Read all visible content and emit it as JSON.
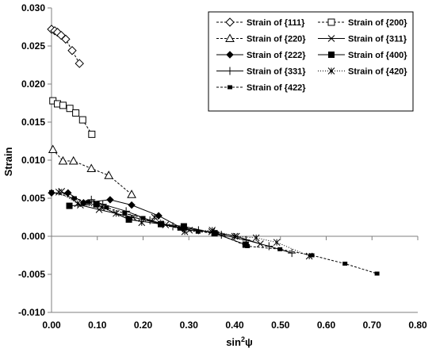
{
  "chart_data": {
    "type": "scatter",
    "xlabel": "sin²ψ",
    "xlabel_base": "sin",
    "xlabel_sup": "2",
    "xlabel_tail": "ψ",
    "ylabel": "Strain",
    "xlim": [
      0.0,
      0.8
    ],
    "ylim": [
      -0.01,
      0.03
    ],
    "x_ticks": [
      "0.00",
      "0.10",
      "0.20",
      "0.30",
      "0.40",
      "0.50",
      "0.60",
      "0.70",
      "0.80"
    ],
    "y_ticks": [
      "-0.010",
      "-0.005",
      "0.000",
      "0.005",
      "0.010",
      "0.015",
      "0.020",
      "0.025",
      "0.030"
    ],
    "grid": false,
    "legend_position": "top-right",
    "series": [
      {
        "name": "Strain of {111}",
        "marker": "diamond-open",
        "line": "dashed",
        "x": [
          0.0,
          0.007,
          0.013,
          0.021,
          0.031,
          0.045,
          0.061
        ],
        "y": [
          0.0272,
          0.027,
          0.0268,
          0.0264,
          0.0259,
          0.0244,
          0.0227
        ]
      },
      {
        "name": "Strain of {200}",
        "marker": "square-open",
        "line": "dashed",
        "x": [
          0.003,
          0.013,
          0.025,
          0.04,
          0.053,
          0.068,
          0.088
        ],
        "y": [
          0.0178,
          0.0174,
          0.0172,
          0.0168,
          0.0162,
          0.0153,
          0.0134
        ]
      },
      {
        "name": "Strain of {220}",
        "marker": "triangle-open",
        "line": "dashed",
        "x": [
          0.003,
          0.025,
          0.048,
          0.087,
          0.125,
          0.175
        ],
        "y": [
          0.0114,
          0.0099,
          0.0099,
          0.0089,
          0.008,
          0.0055
        ]
      },
      {
        "name": "Strain of {311}",
        "marker": "x",
        "line": "solid",
        "x": [
          0.022,
          0.063,
          0.104,
          0.178,
          0.249,
          0.301,
          0.35,
          0.404,
          0.456
        ],
        "y": [
          0.0059,
          0.0041,
          0.0035,
          0.0025,
          0.0015,
          0.0008,
          0.0006,
          0.0,
          -0.001
        ]
      },
      {
        "name": "Strain of {222}",
        "marker": "diamond-filled",
        "line": "solid",
        "x": [
          0.0,
          0.036,
          0.07,
          0.128,
          0.175,
          0.234,
          0.287
        ],
        "y": [
          0.0057,
          0.0057,
          0.0044,
          0.0048,
          0.0041,
          0.0027,
          0.001
        ]
      },
      {
        "name": "Strain of {400}",
        "marker": "square-filled",
        "line": "solid",
        "x": [
          0.039,
          0.098,
          0.169,
          0.239,
          0.289,
          0.356,
          0.424
        ],
        "y": [
          0.004,
          0.0042,
          0.0022,
          0.0016,
          0.0013,
          0.0004,
          -0.0011
        ]
      },
      {
        "name": "Strain of {331}",
        "marker": "plus",
        "line": "solid",
        "x": [
          0.087,
          0.112,
          0.163,
          0.215,
          0.265,
          0.321,
          0.371,
          0.425,
          0.475,
          0.525
        ],
        "y": [
          0.0048,
          0.0042,
          0.0033,
          0.0021,
          0.0013,
          0.0008,
          0.0002,
          -0.0005,
          -0.0013,
          -0.0022
        ]
      },
      {
        "name": "Strain of {420}",
        "marker": "asterisk",
        "line": "dotted",
        "x": [
          0.016,
          0.057,
          0.109,
          0.141,
          0.197,
          0.225,
          0.291,
          0.351,
          0.4,
          0.447,
          0.492,
          0.563
        ],
        "y": [
          0.0058,
          0.0043,
          0.0038,
          0.003,
          0.0018,
          0.0025,
          0.0006,
          0.0008,
          0.0,
          -0.0002,
          -0.0008,
          -0.0026
        ]
      },
      {
        "name": "Strain of {422}",
        "marker": "square-filled-small",
        "line": "dashed",
        "x": [
          0.0,
          0.05,
          0.08,
          0.12,
          0.16,
          0.2,
          0.238,
          0.28,
          0.32,
          0.36,
          0.428,
          0.499,
          0.569,
          0.641,
          0.711
        ],
        "y": [
          0.0058,
          0.005,
          0.0045,
          0.0038,
          0.003,
          0.0024,
          0.0016,
          0.001,
          0.0006,
          0.0004,
          -0.0013,
          -0.0017,
          -0.0025,
          -0.0036,
          -0.0049
        ]
      }
    ]
  }
}
